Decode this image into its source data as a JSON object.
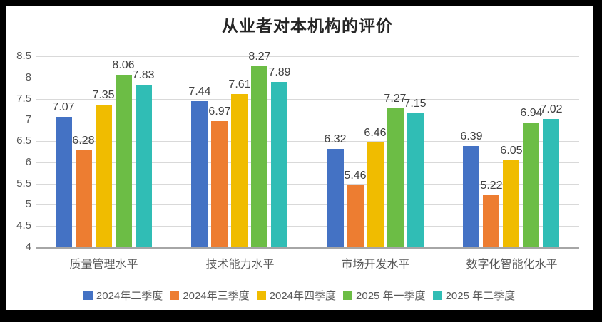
{
  "window": {
    "background_color": "#000000",
    "panel_color": "#ffffff"
  },
  "chart_data": {
    "type": "bar",
    "title": "从业者对本机构的评价",
    "categories": [
      "质量管理水平",
      "技术能力水平",
      "市场开发水平",
      "数字化智能化水平"
    ],
    "series": [
      {
        "name": "2024年二季度",
        "color": "#4472C4",
        "values": [
          7.07,
          7.44,
          6.32,
          6.39
        ]
      },
      {
        "name": "2024年三季度",
        "color": "#ED7D31",
        "values": [
          6.28,
          6.97,
          5.46,
          5.22
        ]
      },
      {
        "name": "2024年四季度",
        "color": "#F0BC00",
        "values": [
          7.35,
          7.61,
          6.46,
          6.05
        ]
      },
      {
        "name": "2025 年一季度",
        "color": "#6CBD45",
        "values": [
          8.06,
          8.27,
          7.27,
          6.94
        ]
      },
      {
        "name": "2025 年二季度",
        "color": "#30BDB5",
        "values": [
          7.83,
          7.89,
          7.15,
          7.02
        ]
      }
    ],
    "ylim": [
      4,
      8.5
    ],
    "yticks": [
      4,
      4.5,
      5,
      5.5,
      6,
      6.5,
      7,
      7.5,
      8,
      8.5
    ],
    "grid": true,
    "data_labels": true,
    "legend_position": "bottom",
    "xlabel": "",
    "ylabel": ""
  },
  "style_colors": {
    "gridline": "#d9d9d9",
    "axis_line": "#a6a6a6",
    "tick_label": "#595959",
    "category_label": "#595959",
    "value_label": "#404040",
    "title": "#262626"
  }
}
